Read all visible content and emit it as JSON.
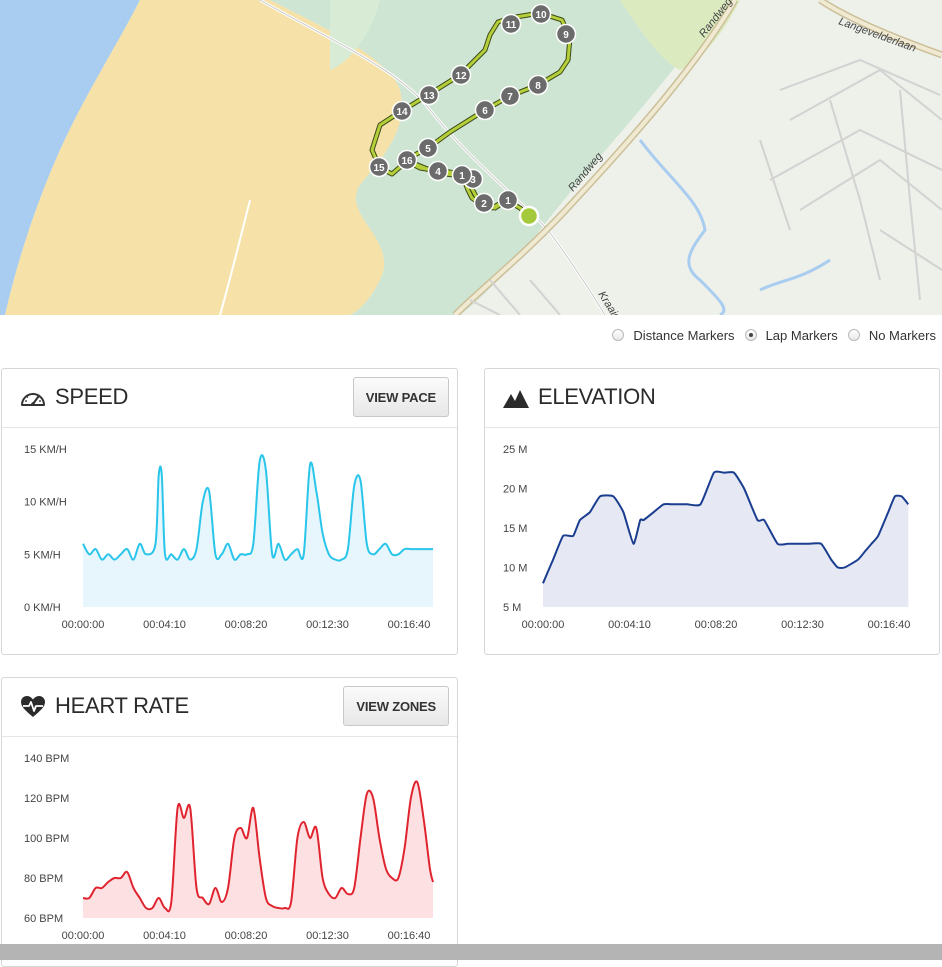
{
  "map": {
    "roads": [
      "Randweg",
      "Randweg",
      "Langevelderlaan",
      "Kraaier"
    ],
    "laps": [
      "1",
      "2",
      "3",
      "4",
      "5",
      "6",
      "7",
      "8",
      "9",
      "10",
      "11",
      "12",
      "13",
      "14",
      "15",
      "16",
      "1"
    ],
    "colors": {
      "water": "#a9cdf0",
      "sand": "#f6e2a8",
      "park": "#cfe5d3",
      "land": "#eef0ea",
      "route": "#b4cf3a",
      "marker": "#6b6b6b",
      "start": "#a4c93a"
    }
  },
  "markers": {
    "options": [
      "Distance Markers",
      "Lap Markers",
      "No Markers"
    ],
    "selected": "Lap Markers"
  },
  "speed": {
    "title": "SPEED",
    "button": "VIEW PACE",
    "icon": "speedometer-icon",
    "color": "#29c5ea",
    "fill": "#e6f6fc"
  },
  "elevation": {
    "title": "ELEVATION",
    "icon": "mountain-icon",
    "color": "#1a3d8f",
    "fill": "#e6e9f4"
  },
  "heart": {
    "title": "HEART RATE",
    "button": "VIEW ZONES",
    "icon": "heart-pulse-icon",
    "color": "#e0242f",
    "fill": "#fde0e2"
  },
  "chart_data": [
    {
      "type": "area",
      "title": "SPEED",
      "y_unit": "KM/H",
      "ylim": [
        0,
        15
      ],
      "yticks": [
        "0 KM/H",
        "5 KM/H",
        "10 KM/H",
        "15 KM/H"
      ],
      "xticks": [
        "00:00:00",
        "00:04:10",
        "00:08:20",
        "00:12:30",
        "00:16:40"
      ],
      "xlim": [
        0,
        1110
      ],
      "x": [
        0,
        20,
        40,
        60,
        80,
        100,
        120,
        140,
        160,
        180,
        200,
        230,
        240,
        250,
        260,
        280,
        300,
        320,
        340,
        360,
        380,
        400,
        420,
        440,
        460,
        480,
        500,
        520,
        540,
        560,
        580,
        600,
        620,
        640,
        660,
        680,
        700,
        720,
        740,
        760,
        780,
        800,
        820,
        840,
        860,
        880,
        900,
        920,
        940,
        960,
        980,
        1000,
        1020,
        1040,
        1060,
        1080,
        1100,
        1110
      ],
      "values": [
        6,
        5,
        5.5,
        4.5,
        5,
        4.5,
        5,
        5.5,
        4.5,
        6,
        5,
        6,
        12.5,
        12.5,
        5,
        5,
        4.5,
        5.5,
        4.5,
        5.5,
        10,
        11,
        5,
        5,
        6,
        4.5,
        5,
        5,
        6,
        13.8,
        13,
        5,
        6,
        4.5,
        5,
        5.5,
        5,
        13.5,
        11,
        7,
        5,
        4.5,
        4.5,
        5.5,
        11.5,
        12,
        6,
        5,
        5.5,
        6,
        5,
        5,
        5.5,
        5.5,
        5.5,
        5.5,
        5.5,
        5.5
      ]
    },
    {
      "type": "area",
      "title": "ELEVATION",
      "y_unit": "M",
      "ylim": [
        5,
        25
      ],
      "yticks": [
        "5 M",
        "10 M",
        "15 M",
        "20 M",
        "25 M"
      ],
      "xticks": [
        "00:00:00",
        "00:04:10",
        "00:08:20",
        "00:12:30",
        "00:16:40"
      ],
      "xlim": [
        0,
        1110
      ],
      "x": [
        0,
        30,
        60,
        90,
        110,
        140,
        170,
        210,
        240,
        270,
        290,
        300,
        330,
        360,
        390,
        430,
        470,
        510,
        540,
        570,
        600,
        640,
        660,
        700,
        730,
        760,
        790,
        830,
        860,
        880,
        900,
        940,
        960,
        980,
        1000,
        1030,
        1050,
        1070,
        1090
      ],
      "values": [
        8,
        11,
        14,
        14,
        16,
        17,
        19,
        19,
        17,
        13,
        16,
        16,
        17,
        18,
        18,
        18,
        18,
        22,
        22,
        22,
        20,
        16,
        16,
        13,
        13,
        13,
        13,
        13,
        11,
        10,
        10,
        11,
        12,
        13,
        14,
        17,
        19,
        19,
        18
      ]
    },
    {
      "type": "area",
      "title": "HEART RATE",
      "y_unit": "BPM",
      "ylim": [
        60,
        140
      ],
      "yticks": [
        "60 BPM",
        "80 BPM",
        "100 BPM",
        "120 BPM",
        "140 BPM"
      ],
      "xticks": [
        "00:00:00",
        "00:04:10",
        "00:08:20",
        "00:12:30",
        "00:16:40"
      ],
      "xlim": [
        0,
        1110
      ],
      "x": [
        0,
        20,
        40,
        60,
        80,
        100,
        120,
        140,
        160,
        180,
        200,
        220,
        240,
        260,
        280,
        300,
        320,
        340,
        360,
        380,
        400,
        420,
        440,
        460,
        480,
        500,
        520,
        540,
        560,
        580,
        600,
        620,
        640,
        660,
        680,
        700,
        720,
        740,
        760,
        780,
        800,
        820,
        840,
        860,
        880,
        900,
        920,
        940,
        960,
        980,
        1000,
        1020,
        1040,
        1060,
        1080,
        1100,
        1110
      ],
      "values": [
        70,
        70,
        75,
        75,
        78,
        80,
        80,
        83,
        75,
        70,
        65,
        65,
        70,
        65,
        68,
        115,
        110,
        115,
        75,
        70,
        67,
        75,
        68,
        75,
        100,
        105,
        100,
        115,
        90,
        70,
        66,
        65,
        65,
        68,
        100,
        108,
        100,
        105,
        80,
        72,
        70,
        75,
        72,
        75,
        100,
        122,
        120,
        100,
        85,
        80,
        80,
        95,
        120,
        128,
        110,
        85,
        78
      ]
    }
  ]
}
